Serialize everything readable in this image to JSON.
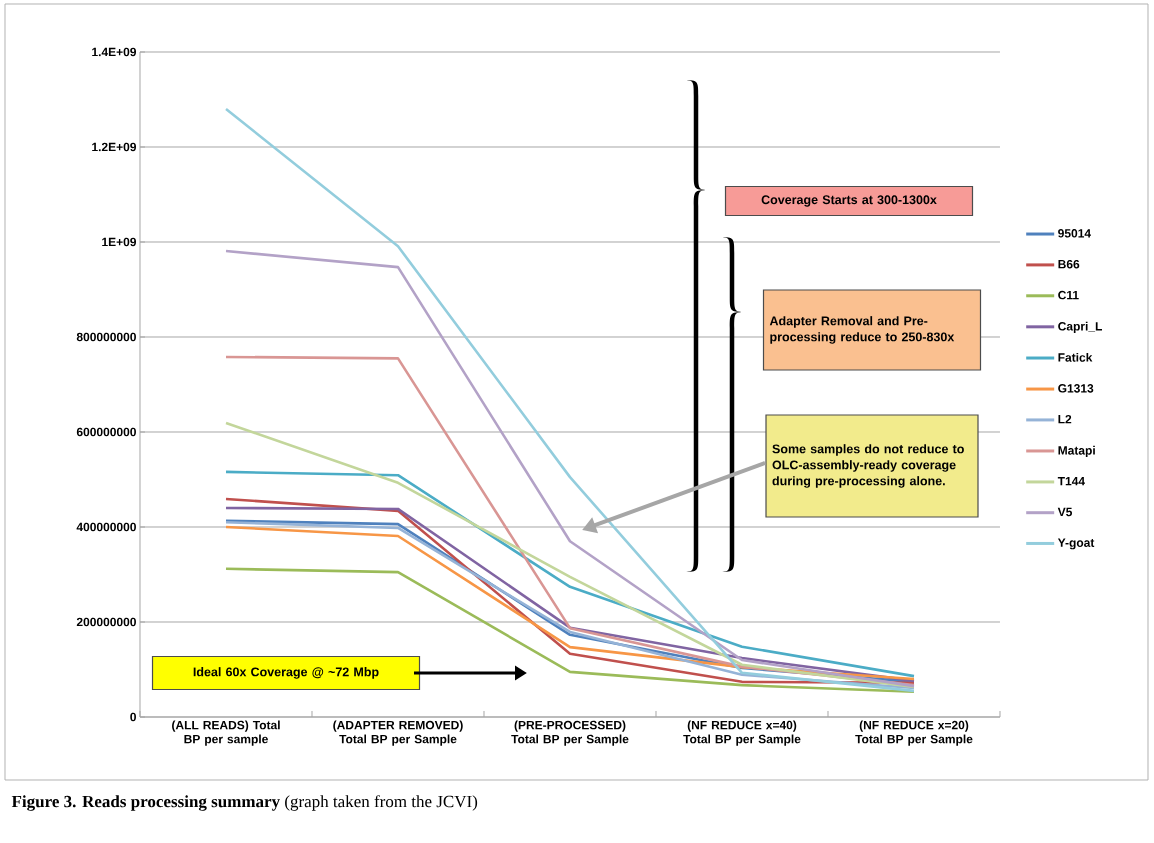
{
  "chart_data": {
    "type": "line",
    "categories": [
      "(ALL READS) Total BP per sample",
      "(ADAPTER REMOVED) Total BP per Sample",
      "(PRE-PROCESSED) Total BP per Sample",
      "(NF REDUCE x=40) Total BP per Sample",
      "(NF REDUCE x=20) Total BP per Sample"
    ],
    "series": [
      {
        "name": "95014",
        "color": "#4f81bd",
        "values": [
          413000000,
          406000000,
          173000000,
          103000000,
          74000000
        ]
      },
      {
        "name": "B66",
        "color": "#c0504d",
        "values": [
          459000000,
          434000000,
          133000000,
          74000000,
          72000000
        ]
      },
      {
        "name": "C11",
        "color": "#9bbb59",
        "values": [
          312000000,
          305000000,
          95000000,
          67000000,
          53000000
        ]
      },
      {
        "name": "Capri_L",
        "color": "#8064a2",
        "values": [
          440000000,
          438000000,
          188000000,
          124000000,
          76000000
        ]
      },
      {
        "name": "Fatick",
        "color": "#4bacc6",
        "values": [
          516000000,
          509000000,
          274000000,
          148000000,
          86000000
        ]
      },
      {
        "name": "G1313",
        "color": "#f79646",
        "values": [
          400000000,
          381000000,
          147000000,
          105000000,
          80000000
        ]
      },
      {
        "name": "L2",
        "color": "#95b3d7",
        "values": [
          410000000,
          398000000,
          179000000,
          89000000,
          61000000
        ]
      },
      {
        "name": "Matapi",
        "color": "#d99694",
        "values": [
          758000000,
          755000000,
          187000000,
          106000000,
          67000000
        ]
      },
      {
        "name": "T144",
        "color": "#c3d69b",
        "values": [
          619000000,
          493000000,
          295000000,
          110000000,
          63000000
        ]
      },
      {
        "name": "V5",
        "color": "#b3a2c7",
        "values": [
          981000000,
          947000000,
          370000000,
          120000000,
          65000000
        ]
      },
      {
        "name": "Y-goat",
        "color": "#93cddd",
        "values": [
          1280000000,
          991000000,
          505000000,
          93000000,
          55000000
        ]
      }
    ],
    "ylim": [
      0,
      1400000000
    ],
    "yticks": [
      0,
      200000000,
      400000000,
      600000000,
      800000000,
      {
        "value": 1000000000,
        "label": "1E+09"
      },
      {
        "value": 1200000000,
        "label": "1.2E+09"
      },
      {
        "value": 1400000000,
        "label": "1.4E+09"
      }
    ],
    "grid": "y",
    "legend": "right",
    "marker": "none",
    "line_style": "solid",
    "annotations": [
      "Coverage Starts at 300-1300x",
      "Adapter Removal and Pre-processing reduce to 250-830x",
      "Some samples do not reduce to OLC-assembly-ready coverage during pre-processing alone.",
      "Ideal 60x Coverage @ ~72 Mbp",
      "**Figure 3. Reads processing summary** (graph taken from the JCVI)"
    ]
  }
}
